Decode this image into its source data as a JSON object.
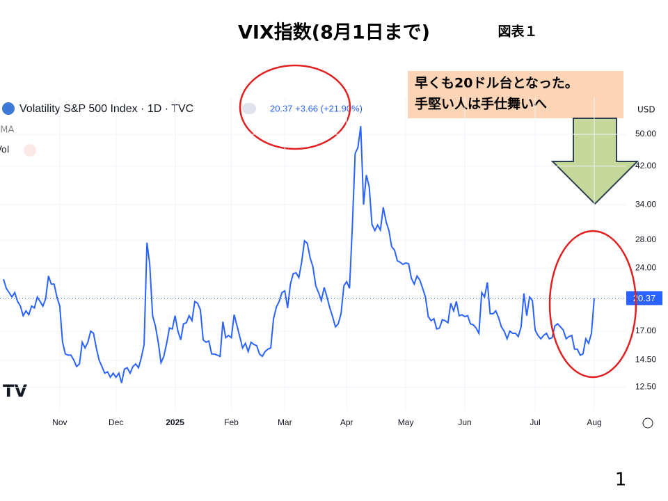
{
  "chart_data": {
    "type": "line",
    "title": "VIX指数(8月1日まで)",
    "figure_label": "図表１",
    "page_number": "1",
    "series_title": "Volatility S&P 500 Index · 1D · TVC",
    "legend_value": "20.37 +3.66 (+21.90%)",
    "indicators": [
      "SMA",
      "Vol"
    ],
    "currency": "USD",
    "annotation": [
      "早くも20ドル台となった。",
      "手堅い人は手仕舞いへ"
    ],
    "log_scale": true,
    "color": "#2962ff",
    "values": [
      22.6,
      21.5,
      21,
      20.5,
      21,
      20,
      19.5,
      18.5,
      19,
      18.6,
      19.5,
      19.3,
      20.5,
      20,
      19.5,
      20.3,
      23,
      22,
      22,
      20.5,
      19.5,
      16,
      15,
      14.9,
      14.9,
      14.5,
      14,
      14.2,
      16,
      15.5,
      16,
      17,
      16.8,
      15.5,
      14.5,
      14,
      13.5,
      13.6,
      13.2,
      13.5,
      13.2,
      13.5,
      12.8,
      13.8,
      13.9,
      13.5,
      14,
      14.2,
      13.9,
      14.7,
      15.8,
      27.6,
      24.5,
      18.5,
      17.5,
      16,
      14.3,
      14.8,
      15.9,
      17.3,
      17.2,
      18.5,
      17,
      16.2,
      17.7,
      17.8,
      18.5,
      18,
      20,
      19.8,
      19.1,
      16.2,
      16,
      16.1,
      15,
      15,
      14.9,
      14.8,
      17.9,
      16.4,
      16.6,
      16.4,
      18.6,
      17.5,
      16.5,
      15.5,
      15.9,
      15.2,
      16,
      15.8,
      15.7,
      15,
      14.8,
      15.2,
      15.4,
      15.5,
      18.2,
      19.4,
      20,
      21,
      21.2,
      19.3,
      22,
      23.3,
      23.4,
      22.8,
      24.8,
      27.9,
      27.5,
      25.4,
      24.2,
      21.8,
      21,
      20.1,
      21.6,
      20.5,
      19.3,
      18.4,
      17.4,
      17.7,
      18.7,
      21.8,
      22.3,
      21.5,
      30,
      45,
      46.5,
      52.3,
      34,
      40,
      37.5,
      30.5,
      29.5,
      30.4,
      29.6,
      33.5,
      31,
      29.5,
      27,
      26.5,
      25,
      24.8,
      24.5,
      24.7,
      24.6,
      22.7,
      22,
      23,
      22.5,
      21.5,
      20.5,
      18.4,
      18,
      18.2,
      17.2,
      17.3,
      18.1,
      18,
      17.8,
      19.8,
      19,
      20,
      18.5,
      18.6,
      18.4,
      18.5,
      17.7,
      17.6,
      17.3,
      16.8,
      21,
      20.5,
      22.2,
      18.7,
      18.7,
      19,
      18.3,
      17.4,
      17,
      16.3,
      17,
      16.8,
      16.8,
      16.5,
      17.4,
      20.9,
      18.5,
      20.5,
      20.1,
      17.1,
      16.6,
      16.3,
      16.6,
      16.8,
      16.3,
      16.4,
      17.5,
      17.7,
      17.4,
      17.1,
      16.3,
      16.5,
      16.6,
      15.4,
      15.4,
      14.9,
      15,
      16.3,
      15.9,
      16.8,
      20.37
    ],
    "xlim": [
      0,
      210
    ],
    "xticks": [
      {
        "value": 20,
        "label": "Nov"
      },
      {
        "value": 40,
        "label": "Dec"
      },
      {
        "value": 61,
        "label": "2025"
      },
      {
        "value": 81,
        "label": "Feb"
      },
      {
        "value": 100,
        "label": "Mar"
      },
      {
        "value": 122,
        "label": "Apr"
      },
      {
        "value": 143,
        "label": "May"
      },
      {
        "value": 164,
        "label": "Jun"
      },
      {
        "value": 189,
        "label": "Jul"
      },
      {
        "value": 210,
        "label": "Aug"
      }
    ],
    "ylim": [
      11,
      61.2
    ],
    "yticks": [
      {
        "value": 12.5,
        "label": "12.50"
      },
      {
        "value": 14.5,
        "label": "14.50"
      },
      {
        "value": 17,
        "label": "17.00"
      },
      {
        "value": 24,
        "label": "24.00"
      },
      {
        "value": 28,
        "label": "28.00"
      },
      {
        "value": 34,
        "label": "34.00"
      },
      {
        "value": 42,
        "label": "42.00"
      },
      {
        "value": 50,
        "label": "50.00"
      }
    ],
    "grid": true
  }
}
